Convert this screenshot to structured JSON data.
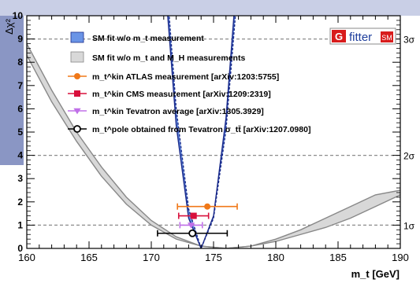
{
  "chart_data": {
    "type": "line",
    "title": "",
    "xlabel": "m_t [GeV]",
    "ylabel": "Δχ²",
    "xlim": [
      160,
      190
    ],
    "ylim": [
      0,
      10
    ],
    "x_ticks": [
      "160",
      "165",
      "170",
      "175",
      "180",
      "185",
      "190"
    ],
    "y_ticks": [
      "0",
      "1",
      "2",
      "3",
      "4",
      "5",
      "6",
      "7",
      "8",
      "9",
      "10"
    ],
    "sigma_levels": [
      {
        "label": "1σ",
        "value": 1
      },
      {
        "label": "2σ",
        "value": 4
      },
      {
        "label": "3σ",
        "value": 9
      }
    ],
    "grid": "dashed lines at 1σ, 2σ, 3σ",
    "legend_position": "top-left",
    "logo": {
      "text": "fitter",
      "badge": "G",
      "sub": "SM"
    },
    "series": [
      {
        "name": "SM fit w/o m_t measurement",
        "kind": "band",
        "color": "#6a94e6",
        "edge_color": "#1a2a8a",
        "x": [
          166.0,
          167.0,
          168.0,
          169.0,
          170.0,
          171.0,
          172.0,
          173.0,
          174.0,
          175.0,
          176.0,
          177.0,
          178.0,
          179.0,
          180.0,
          181.0,
          182.0,
          183.0,
          184.0,
          185.0,
          186.0
        ],
        "y_low": [
          91.5,
          69.3,
          50.4,
          34.5,
          21.9,
          12.2,
          5.3,
          1.3,
          0.0,
          1.4,
          5.6,
          12.5,
          22.3,
          34.9,
          50.2,
          68.4,
          89.4,
          113.1,
          139.7,
          169.0,
          201.1
        ],
        "y_high": [
          92.5,
          70.4,
          51.5,
          35.6,
          22.9,
          13.1,
          6.0,
          1.7,
          0.0,
          1.3,
          5.1,
          11.6,
          20.9,
          33.0,
          47.8,
          65.5,
          86.0,
          109.2,
          135.3,
          164.1,
          195.6
        ]
      },
      {
        "name": "SM fit w/o m_t and M_H measurements",
        "kind": "band",
        "color": "#d8d8d8",
        "edge_color": "#888888",
        "x": [
          160.0,
          162.0,
          164.0,
          166.0,
          168.0,
          170.0,
          172.0,
          174.0,
          176.0,
          178.0,
          180.0,
          182.0,
          184.0,
          186.0,
          188.0,
          190.0
        ],
        "y_low": [
          8.3,
          6.3,
          4.6,
          3.1,
          1.9,
          1.0,
          0.4,
          0.1,
          0.0,
          0.1,
          0.3,
          0.6,
          0.9,
          1.3,
          1.8,
          2.3
        ],
        "y_high": [
          8.8,
          6.8,
          5.0,
          3.5,
          2.2,
          1.2,
          0.5,
          0.1,
          0.0,
          0.1,
          0.4,
          0.8,
          1.3,
          1.8,
          2.3,
          2.5
        ]
      },
      {
        "name": "m_t^kin ATLAS measurement [arXiv:1203:5755]",
        "kind": "point",
        "marker": "circle",
        "color": "#f07818",
        "x": 174.5,
        "xerr": [
          2.4,
          2.4
        ],
        "y": 1.8
      },
      {
        "name": "m_t^kin CMS measurement [arXiv:1209:2319]",
        "kind": "point",
        "marker": "square",
        "color": "#d8103c",
        "x": 173.4,
        "xerr": [
          1.2,
          1.2
        ],
        "y": 1.4
      },
      {
        "name": "m_t^kin Tevatron average [arXiv:1305.3929]",
        "kind": "point",
        "marker": "triangle-down",
        "color": "#c070e8",
        "x": 173.2,
        "xerr": [
          0.9,
          0.9
        ],
        "y": 1.0
      },
      {
        "name": "m_t^pole obtained from Tevatron σ_tt̄ [arXiv:1207.0980]",
        "kind": "point",
        "marker": "open-circle",
        "color": "#000000",
        "x": 173.3,
        "xerr": [
          2.8,
          2.8
        ],
        "y": 0.65
      }
    ]
  }
}
